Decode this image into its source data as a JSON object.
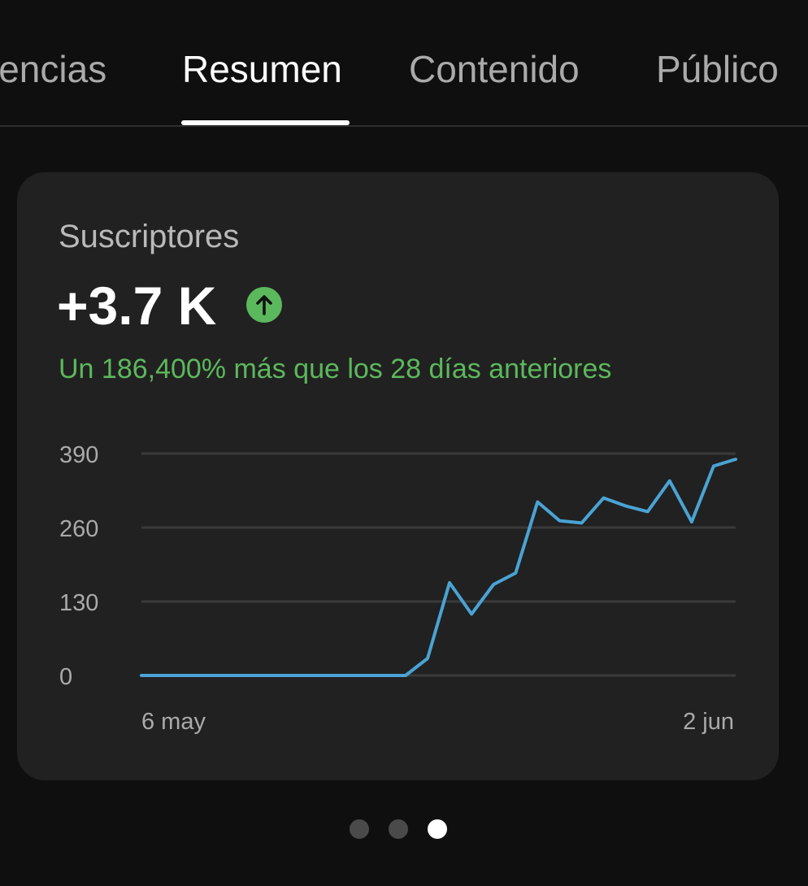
{
  "tabs": [
    {
      "label": "lencias",
      "active": false
    },
    {
      "label": "Resumen",
      "active": true
    },
    {
      "label": "Contenido",
      "active": false
    },
    {
      "label": "Público",
      "active": false
    }
  ],
  "card": {
    "title": "Suscriptores",
    "value": "+3.7 K",
    "trend_icon": "arrow-up-icon",
    "delta_text": "Un 186,400% más que los 28 días anteriores"
  },
  "chart_data": {
    "type": "line",
    "title": "",
    "xlabel": "",
    "ylabel": "",
    "x_tick_labels": [
      "6 may",
      "2 jun"
    ],
    "y_ticks": [
      0,
      130,
      260,
      390
    ],
    "ylim": [
      0,
      390
    ],
    "grid": true,
    "series": [
      {
        "color": "#4aa3d4",
        "values": [
          0,
          0,
          0,
          0,
          0,
          0,
          0,
          0,
          0,
          0,
          0,
          0,
          0,
          30,
          163,
          108,
          160,
          180,
          305,
          272,
          268,
          312,
          298,
          288,
          342,
          270,
          368,
          380
        ]
      }
    ]
  },
  "pagination": {
    "count": 3,
    "active_index": 2
  },
  "colors": {
    "background": "#0f0f0f",
    "card": "#212121",
    "positive": "#5cb85c",
    "line": "#4aa3d4",
    "gridline": "#3a3a3a"
  }
}
